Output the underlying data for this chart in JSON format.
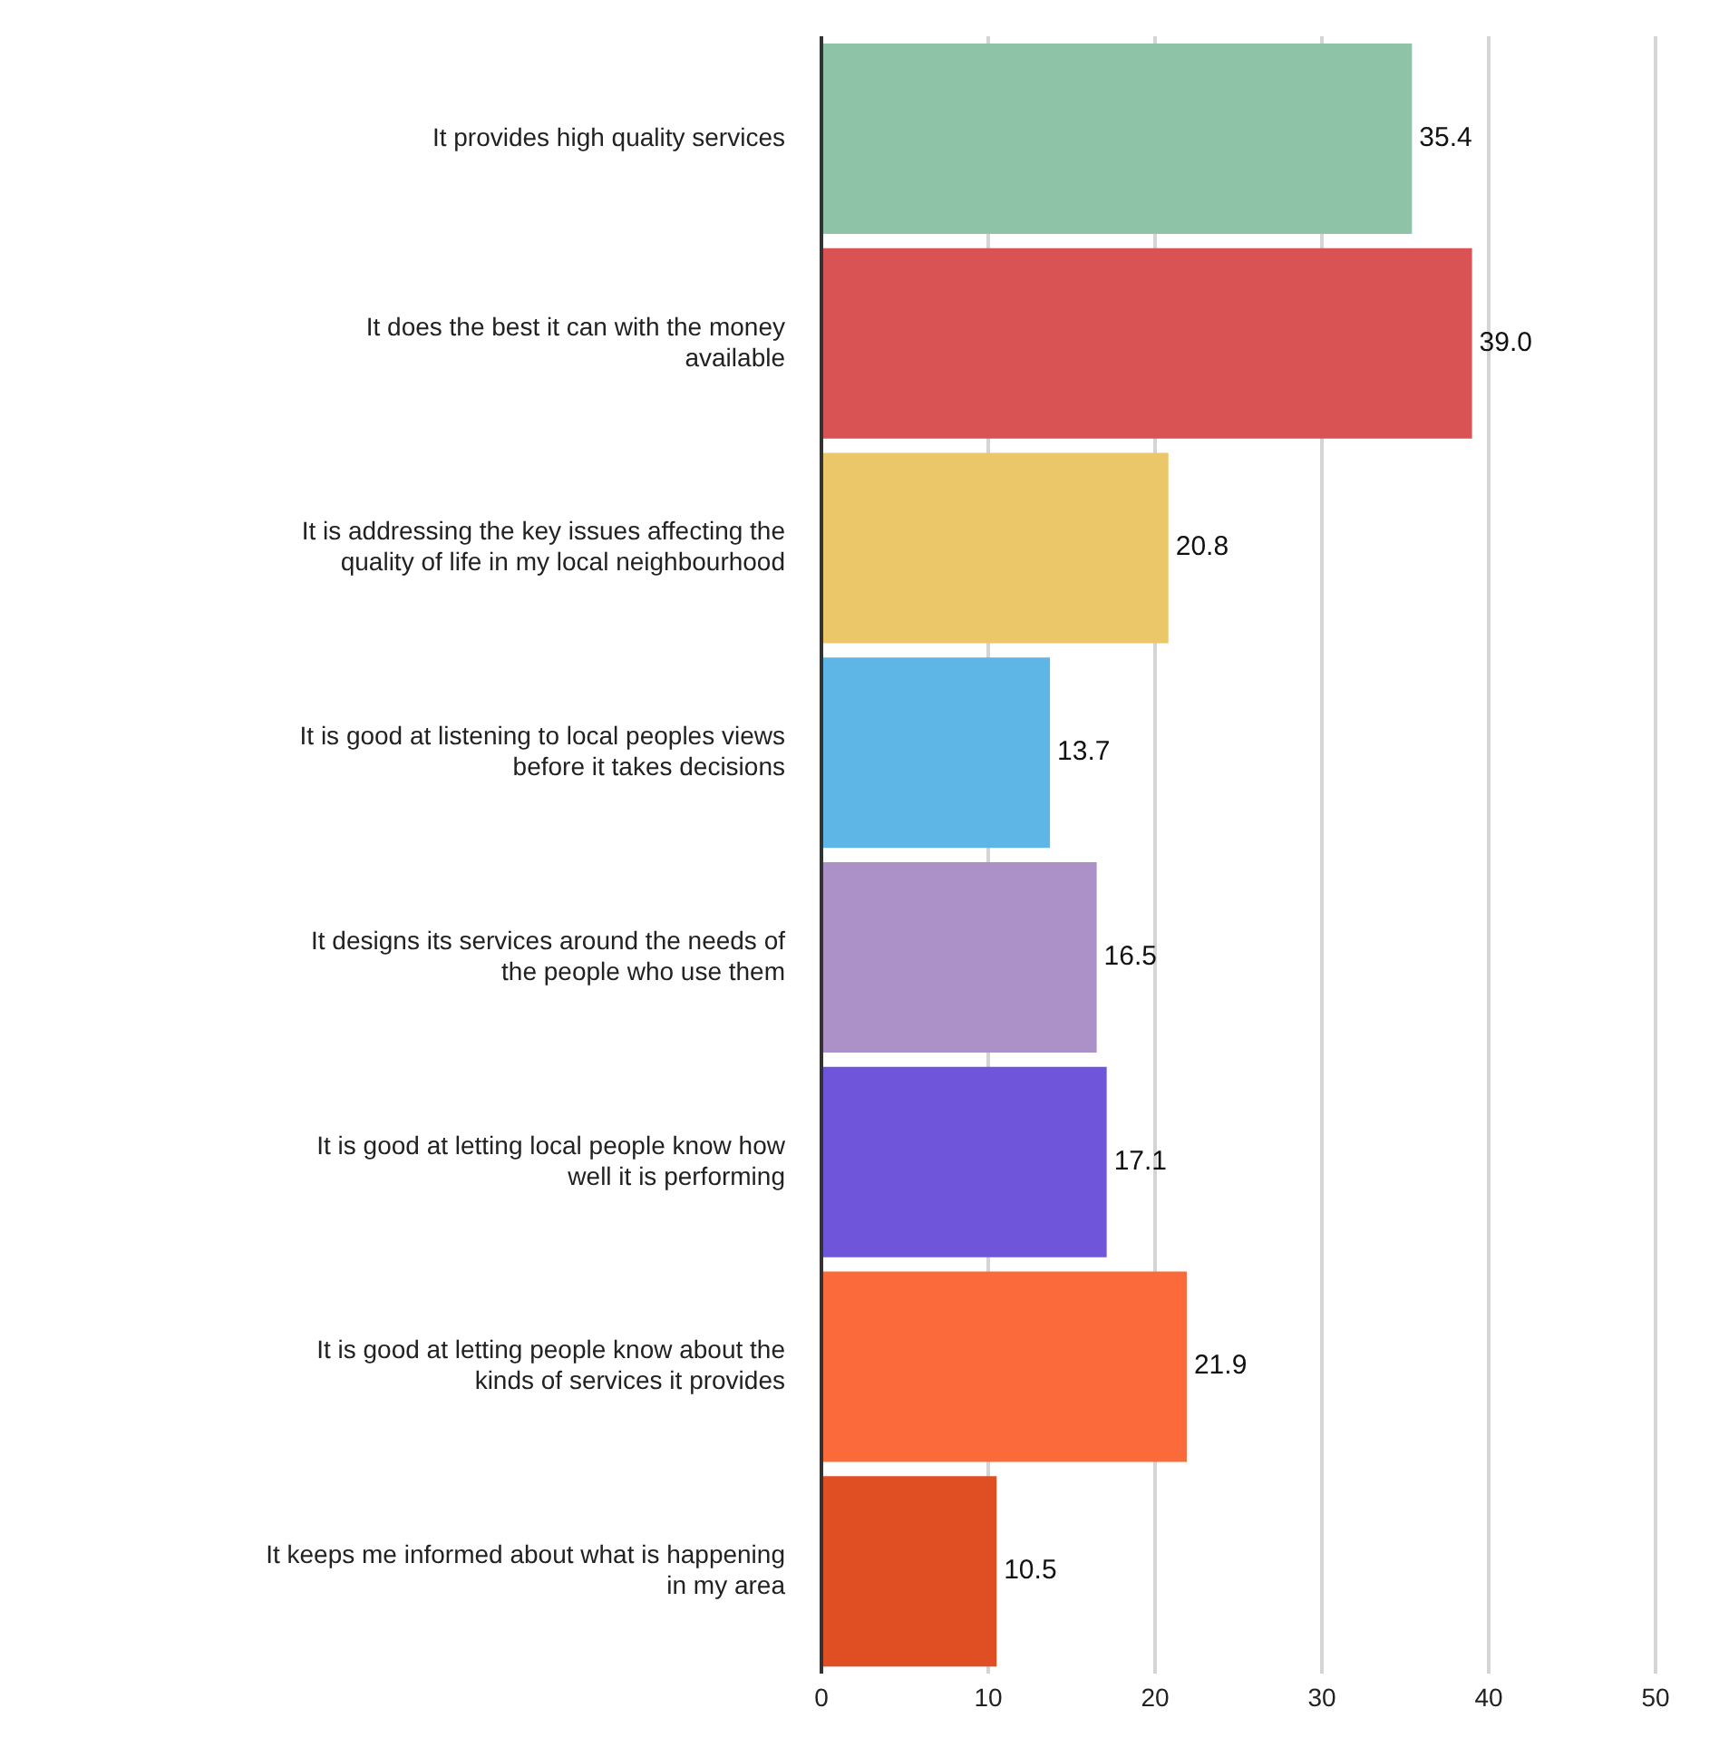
{
  "chart_data": {
    "type": "bar",
    "orientation": "horizontal",
    "categories": [
      "It provides high quality services",
      "It does the best it can with the money available",
      "It is addressing the key issues affecting the quality of life in my local neighbourhood",
      "It is good at listening to local peoples views before it takes decisions",
      "It designs its services around the needs of the people who use them",
      "It is good at letting local people know how well it is performing",
      "It is good at letting people know about the kinds of services it provides",
      "It keeps me informed about what is happening in my area"
    ],
    "values": [
      35.4,
      39.0,
      20.8,
      13.7,
      16.5,
      17.1,
      21.9,
      10.5
    ],
    "value_labels": [
      "35.4",
      "39.0",
      "20.8",
      "13.7",
      "16.5",
      "17.1",
      "21.9",
      "10.5"
    ],
    "colors": [
      "#8fc3a8",
      "#d95355",
      "#ecc76a",
      "#5db6e5",
      "#ab91c8",
      "#6e55d9",
      "#fb6a3a",
      "#e04e24"
    ],
    "xlim": [
      0,
      50
    ],
    "xticks": [
      0,
      10,
      20,
      30,
      40,
      50
    ],
    "grid": "x"
  }
}
